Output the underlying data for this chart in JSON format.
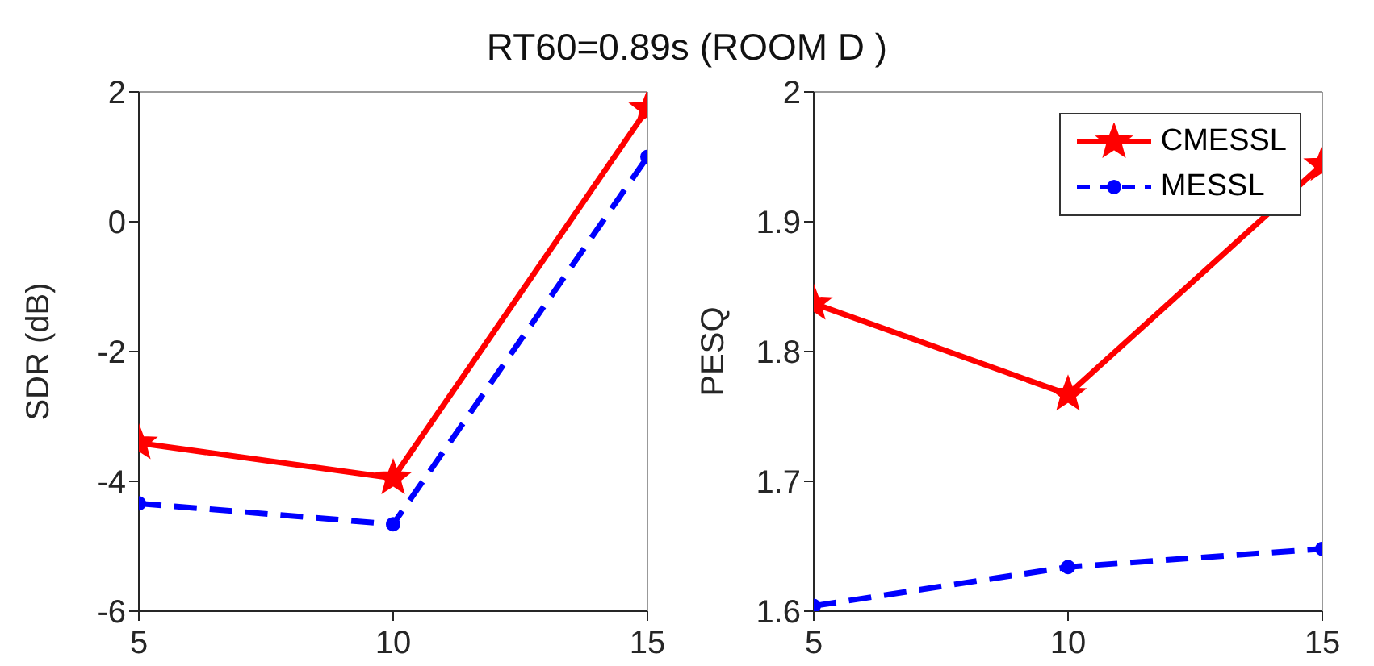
{
  "chart_data": [
    {
      "type": "line",
      "title": "RT60=0.89s (ROOM D )",
      "ylabel": "SDR (dB)",
      "x": [
        5,
        10,
        15
      ],
      "xlim": [
        5,
        15
      ],
      "xticks": [
        5,
        10,
        15
      ],
      "ylim": [
        -6,
        2
      ],
      "yticks": [
        -6,
        -4,
        -2,
        0,
        2
      ],
      "grid": false,
      "legend": false,
      "series": [
        {
          "color": "#ff0000",
          "values": [
            -3.41,
            -3.95,
            1.74
          ],
          "marker": "star",
          "line_style": "solid"
        },
        {
          "color": "#0000ff",
          "values": [
            -4.34,
            -4.66,
            1.0
          ],
          "marker": "circle",
          "line_style": "dashed"
        }
      ]
    },
    {
      "type": "line",
      "ylabel": "PESQ",
      "x": [
        5,
        10,
        15
      ],
      "xlim": [
        5,
        15
      ],
      "xticks": [
        5,
        10,
        15
      ],
      "ylim": [
        1.6,
        2
      ],
      "yticks": [
        1.6,
        1.7,
        1.8,
        1.9,
        2
      ],
      "grid": false,
      "legend": "top right",
      "series": [
        {
          "name": "CMESSL",
          "color": "#ff0000",
          "values": [
            1.837,
            1.767,
            1.944
          ],
          "marker": "star",
          "line_style": "solid"
        },
        {
          "name": "MESSL",
          "color": "#0000ff",
          "values": [
            1.604,
            1.634,
            1.648
          ],
          "marker": "circle",
          "line_style": "dashed"
        }
      ]
    }
  ]
}
